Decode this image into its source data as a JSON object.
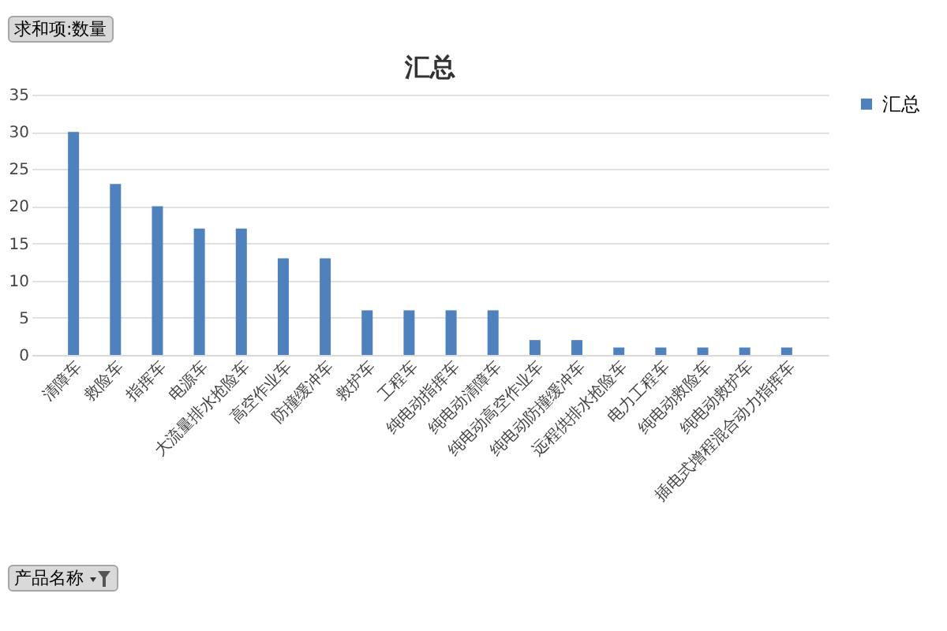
{
  "chart_data": {
    "type": "bar",
    "title": "汇总",
    "categories": [
      "清障车",
      "救险车",
      "指挥车",
      "电源车",
      "大流量排水抢险车",
      "高空作业车",
      "防撞缓冲车",
      "救护车",
      "工程车",
      "纯电动指挥车",
      "纯电动清障车",
      "纯电动高空作业车",
      "纯电动防撞缓冲车",
      "远程供排水抢险车",
      "电力工程车",
      "纯电动救险车",
      "纯电动救护车",
      "插电式增程混合动力指挥车"
    ],
    "series": [
      {
        "name": "汇总",
        "color": "#4f81bd",
        "values": [
          30,
          23,
          20,
          17,
          17,
          13,
          13,
          6,
          6,
          6,
          6,
          2,
          2,
          1,
          1,
          1,
          1,
          1
        ]
      }
    ],
    "ylim": [
      0,
      35
    ],
    "yticks": [
      0,
      5,
      10,
      15,
      20,
      25,
      30,
      35
    ],
    "grid": "y",
    "legend": "right",
    "annotations": [
      "求和项:数量",
      "产品名称"
    ]
  }
}
